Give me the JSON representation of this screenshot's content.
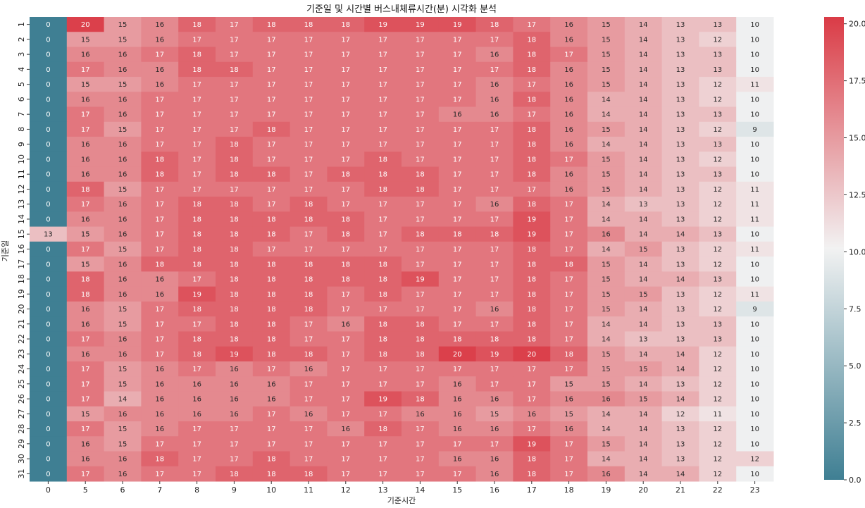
{
  "chart_data": {
    "type": "heatmap",
    "title": "기준일 및 시간별 버스내체류시간(분) 시각화 분석",
    "xlabel": "기준시간",
    "ylabel": "기준일",
    "x_categories": [
      "0",
      "5",
      "6",
      "7",
      "8",
      "9",
      "10",
      "11",
      "12",
      "13",
      "14",
      "15",
      "16",
      "17",
      "18",
      "19",
      "20",
      "21",
      "22",
      "23"
    ],
    "y_categories": [
      "1",
      "2",
      "3",
      "4",
      "5",
      "6",
      "7",
      "8",
      "9",
      "10",
      "11",
      "12",
      "13",
      "14",
      "15",
      "16",
      "17",
      "18",
      "19",
      "20",
      "21",
      "22",
      "23",
      "24",
      "25",
      "26",
      "27",
      "28",
      "29",
      "30",
      "31"
    ],
    "values": [
      [
        0,
        20,
        15,
        16,
        18,
        17,
        18,
        18,
        18,
        19,
        19,
        19,
        18,
        17,
        16,
        15,
        14,
        13,
        13,
        10
      ],
      [
        0,
        15,
        15,
        16,
        17,
        17,
        17,
        17,
        17,
        17,
        17,
        17,
        17,
        18,
        16,
        15,
        14,
        13,
        12,
        10
      ],
      [
        0,
        16,
        16,
        17,
        18,
        17,
        17,
        17,
        17,
        17,
        17,
        17,
        16,
        18,
        17,
        15,
        14,
        13,
        13,
        10
      ],
      [
        0,
        17,
        16,
        16,
        18,
        18,
        17,
        17,
        17,
        17,
        17,
        17,
        17,
        18,
        16,
        15,
        14,
        13,
        13,
        10
      ],
      [
        0,
        15,
        15,
        16,
        17,
        17,
        17,
        17,
        17,
        17,
        17,
        17,
        16,
        17,
        16,
        15,
        14,
        13,
        12,
        11
      ],
      [
        0,
        16,
        16,
        17,
        17,
        17,
        17,
        17,
        17,
        17,
        17,
        17,
        16,
        18,
        16,
        14,
        14,
        13,
        12,
        10
      ],
      [
        0,
        17,
        16,
        17,
        17,
        17,
        17,
        17,
        17,
        17,
        17,
        16,
        16,
        17,
        16,
        14,
        14,
        13,
        13,
        10
      ],
      [
        0,
        17,
        15,
        17,
        17,
        17,
        18,
        17,
        17,
        17,
        17,
        17,
        17,
        18,
        16,
        15,
        14,
        13,
        12,
        9
      ],
      [
        0,
        16,
        16,
        17,
        17,
        18,
        17,
        17,
        17,
        17,
        17,
        17,
        17,
        18,
        16,
        14,
        14,
        13,
        13,
        10
      ],
      [
        0,
        16,
        16,
        18,
        17,
        18,
        17,
        17,
        17,
        18,
        17,
        17,
        17,
        18,
        17,
        15,
        14,
        13,
        12,
        10
      ],
      [
        0,
        16,
        16,
        18,
        17,
        18,
        18,
        17,
        18,
        18,
        18,
        17,
        17,
        18,
        16,
        15,
        14,
        13,
        13,
        10
      ],
      [
        0,
        18,
        15,
        17,
        17,
        17,
        17,
        17,
        17,
        18,
        18,
        17,
        17,
        17,
        16,
        15,
        14,
        13,
        12,
        11
      ],
      [
        0,
        17,
        16,
        17,
        18,
        18,
        17,
        18,
        17,
        17,
        17,
        17,
        16,
        18,
        17,
        14,
        13,
        13,
        12,
        11
      ],
      [
        0,
        16,
        16,
        17,
        18,
        18,
        18,
        18,
        18,
        17,
        17,
        17,
        17,
        19,
        17,
        14,
        14,
        13,
        12,
        11
      ],
      [
        13,
        15,
        16,
        17,
        18,
        18,
        18,
        17,
        18,
        17,
        18,
        18,
        18,
        19,
        17,
        16,
        14,
        14,
        13,
        10
      ],
      [
        0,
        17,
        15,
        17,
        18,
        18,
        17,
        17,
        17,
        17,
        17,
        17,
        17,
        18,
        17,
        14,
        15,
        13,
        12,
        11
      ],
      [
        0,
        15,
        16,
        18,
        18,
        18,
        18,
        18,
        18,
        18,
        17,
        17,
        17,
        18,
        18,
        15,
        14,
        13,
        12,
        10
      ],
      [
        0,
        18,
        16,
        16,
        17,
        18,
        18,
        18,
        18,
        18,
        19,
        17,
        17,
        18,
        17,
        15,
        14,
        14,
        13,
        10
      ],
      [
        0,
        18,
        16,
        16,
        19,
        18,
        18,
        18,
        17,
        18,
        17,
        17,
        17,
        18,
        17,
        15,
        15,
        13,
        12,
        11
      ],
      [
        0,
        16,
        15,
        17,
        18,
        18,
        18,
        18,
        17,
        17,
        17,
        17,
        16,
        18,
        17,
        15,
        14,
        13,
        12,
        9
      ],
      [
        0,
        16,
        15,
        17,
        17,
        18,
        18,
        17,
        16,
        18,
        18,
        17,
        17,
        18,
        17,
        14,
        14,
        13,
        13,
        10
      ],
      [
        0,
        17,
        16,
        17,
        18,
        18,
        18,
        17,
        17,
        18,
        18,
        18,
        18,
        18,
        17,
        14,
        13,
        13,
        13,
        10
      ],
      [
        0,
        16,
        16,
        17,
        18,
        19,
        18,
        18,
        17,
        18,
        18,
        20,
        19,
        20,
        18,
        15,
        14,
        14,
        12,
        10
      ],
      [
        0,
        17,
        15,
        16,
        17,
        16,
        17,
        16,
        17,
        17,
        17,
        17,
        17,
        17,
        17,
        15,
        15,
        14,
        12,
        10
      ],
      [
        0,
        17,
        15,
        16,
        16,
        16,
        16,
        17,
        17,
        17,
        17,
        16,
        17,
        17,
        15,
        15,
        14,
        13,
        12,
        10
      ],
      [
        0,
        17,
        14,
        16,
        16,
        16,
        16,
        17,
        17,
        19,
        18,
        16,
        16,
        17,
        16,
        16,
        15,
        14,
        12,
        10
      ],
      [
        0,
        15,
        16,
        16,
        16,
        16,
        17,
        16,
        17,
        17,
        16,
        16,
        15,
        16,
        15,
        14,
        14,
        12,
        11,
        10
      ],
      [
        0,
        17,
        15,
        16,
        17,
        17,
        17,
        17,
        16,
        18,
        17,
        16,
        16,
        17,
        16,
        14,
        14,
        13,
        12,
        10
      ],
      [
        0,
        16,
        15,
        17,
        17,
        17,
        17,
        17,
        17,
        17,
        17,
        17,
        17,
        19,
        17,
        15,
        14,
        13,
        12,
        10
      ],
      [
        0,
        16,
        16,
        18,
        17,
        17,
        18,
        17,
        17,
        17,
        17,
        16,
        16,
        18,
        17,
        14,
        14,
        13,
        12,
        12
      ],
      [
        0,
        17,
        16,
        17,
        17,
        18,
        18,
        18,
        17,
        17,
        17,
        17,
        16,
        18,
        17,
        16,
        14,
        14,
        12,
        10
      ]
    ],
    "colorbar_ticks": [
      "0.0",
      "2.5",
      "5.0",
      "7.5",
      "10.0",
      "12.5",
      "15.0",
      "17.5",
      "20.0"
    ],
    "vmin": 0,
    "vmax": 20.3,
    "colors": {
      "low": "#3f7f93",
      "mid": "#f2f2f2",
      "high": "#da3b46"
    },
    "grid": false
  }
}
